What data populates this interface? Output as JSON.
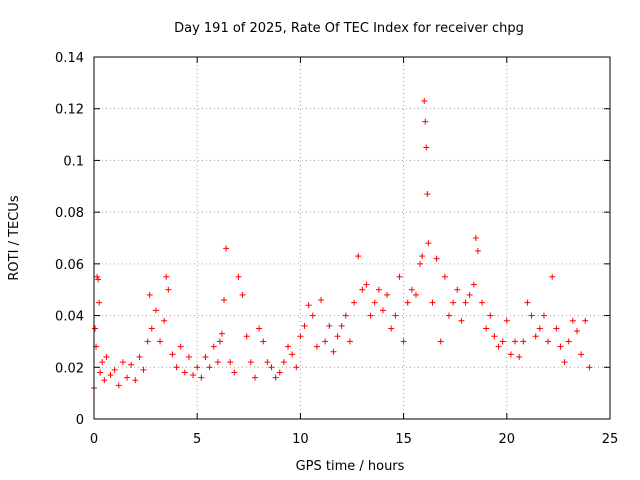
{
  "chart_data": {
    "type": "scatter",
    "title": "Day 191 of 2025, Rate Of TEC Index for receiver chpg",
    "xlabel": "GPS time / hours",
    "ylabel": "ROTI / TECUs",
    "xlim": [
      0,
      25
    ],
    "ylim": [
      0,
      0.14
    ],
    "x_ticks": [
      0,
      5,
      10,
      15,
      20,
      25
    ],
    "x_tick_labels": [
      "0",
      "5",
      "10",
      "15",
      "20",
      "25"
    ],
    "y_ticks": [
      0,
      0.02,
      0.04,
      0.06,
      0.08,
      0.1,
      0.12,
      0.14
    ],
    "y_tick_labels": [
      "0",
      "0.02",
      "0.04",
      "0.06",
      "0.08",
      "0.1",
      "0.12",
      "0.14"
    ],
    "grid": true,
    "marker": "plus",
    "color": "#ff0000",
    "series": [
      {
        "name": "ROTI",
        "x": [
          0.0,
          0.05,
          0.1,
          0.15,
          0.2,
          0.25,
          0.3,
          0.4,
          0.5,
          0.6,
          0.8,
          1.0,
          1.2,
          1.4,
          1.6,
          1.8,
          2.0,
          2.2,
          2.4,
          2.6,
          2.7,
          2.8,
          3.0,
          3.2,
          3.4,
          3.5,
          3.6,
          3.8,
          4.0,
          4.2,
          4.4,
          4.6,
          4.8,
          5.0,
          5.2,
          5.4,
          5.6,
          5.8,
          6.0,
          6.1,
          6.2,
          6.3,
          6.4,
          6.6,
          6.8,
          7.0,
          7.2,
          7.4,
          7.6,
          7.8,
          8.0,
          8.2,
          8.4,
          8.6,
          8.8,
          9.0,
          9.2,
          9.4,
          9.6,
          9.8,
          10.0,
          10.2,
          10.4,
          10.6,
          10.8,
          11.0,
          11.2,
          11.4,
          11.6,
          11.8,
          12.0,
          12.2,
          12.4,
          12.6,
          12.8,
          13.0,
          13.2,
          13.4,
          13.6,
          13.8,
          14.0,
          14.2,
          14.4,
          14.6,
          14.8,
          15.0,
          15.2,
          15.4,
          15.6,
          15.8,
          15.9,
          16.0,
          16.05,
          16.1,
          16.15,
          16.2,
          16.4,
          16.6,
          16.8,
          17.0,
          17.2,
          17.4,
          17.6,
          17.8,
          18.0,
          18.2,
          18.4,
          18.5,
          18.6,
          18.8,
          19.0,
          19.2,
          19.4,
          19.6,
          19.8,
          20.0,
          20.2,
          20.4,
          20.6,
          20.8,
          21.0,
          21.2,
          21.4,
          21.6,
          21.8,
          22.0,
          22.2,
          22.4,
          22.6,
          22.8,
          23.0,
          23.2,
          23.4,
          23.6,
          23.8,
          24.0
        ],
        "y": [
          0.012,
          0.035,
          0.028,
          0.055,
          0.054,
          0.045,
          0.018,
          0.022,
          0.015,
          0.024,
          0.017,
          0.019,
          0.013,
          0.022,
          0.016,
          0.021,
          0.015,
          0.024,
          0.019,
          0.03,
          0.048,
          0.035,
          0.042,
          0.03,
          0.038,
          0.055,
          0.05,
          0.025,
          0.02,
          0.028,
          0.018,
          0.024,
          0.017,
          0.02,
          0.016,
          0.024,
          0.02,
          0.028,
          0.022,
          0.03,
          0.033,
          0.046,
          0.066,
          0.022,
          0.018,
          0.055,
          0.048,
          0.032,
          0.022,
          0.016,
          0.035,
          0.03,
          0.022,
          0.02,
          0.016,
          0.018,
          0.022,
          0.028,
          0.025,
          0.02,
          0.032,
          0.036,
          0.044,
          0.04,
          0.028,
          0.046,
          0.03,
          0.036,
          0.026,
          0.032,
          0.036,
          0.04,
          0.03,
          0.045,
          0.063,
          0.05,
          0.052,
          0.04,
          0.045,
          0.05,
          0.042,
          0.048,
          0.035,
          0.04,
          0.055,
          0.03,
          0.045,
          0.05,
          0.048,
          0.06,
          0.063,
          0.123,
          0.115,
          0.105,
          0.087,
          0.068,
          0.045,
          0.062,
          0.03,
          0.055,
          0.04,
          0.045,
          0.05,
          0.038,
          0.045,
          0.048,
          0.052,
          0.07,
          0.065,
          0.045,
          0.035,
          0.04,
          0.032,
          0.028,
          0.03,
          0.038,
          0.025,
          0.03,
          0.024,
          0.03,
          0.045,
          0.04,
          0.032,
          0.035,
          0.04,
          0.03,
          0.055,
          0.035,
          0.028,
          0.022,
          0.03,
          0.038,
          0.034,
          0.025,
          0.038,
          0.02
        ]
      }
    ]
  }
}
